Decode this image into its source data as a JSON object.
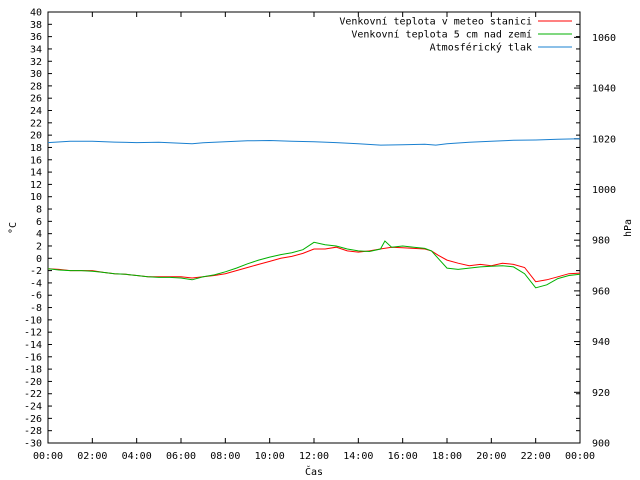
{
  "chart_data": {
    "type": "line",
    "xlabel": "Čas",
    "ylabel": "°C",
    "y2label": "hPa",
    "ylim": [
      -30,
      40
    ],
    "y2lim": [
      900,
      1070
    ],
    "xlim": [
      "00:00",
      "24:00"
    ],
    "x_tick_labels": [
      "00:00",
      "02:00",
      "04:00",
      "06:00",
      "08:00",
      "10:00",
      "12:00",
      "14:00",
      "16:00",
      "18:00",
      "20:00",
      "22:00",
      "00:00"
    ],
    "y_ticks": [
      -30,
      -28,
      -26,
      -24,
      -22,
      -20,
      -18,
      -16,
      -14,
      -12,
      -10,
      -8,
      -6,
      -4,
      -2,
      0,
      2,
      4,
      6,
      8,
      10,
      12,
      14,
      16,
      18,
      20,
      22,
      24,
      26,
      28,
      30,
      32,
      34,
      36,
      38,
      40
    ],
    "y2_ticks": [
      900,
      920,
      940,
      960,
      980,
      1000,
      1020,
      1040,
      1060
    ],
    "grid": false,
    "legend_position": "top-right",
    "series": [
      {
        "name": "Venkovní teplota v meteo stanici",
        "axis": "left",
        "color": "#ff0000",
        "x": [
          0,
          0.5,
          1,
          1.5,
          2,
          2.5,
          3,
          3.5,
          4,
          4.5,
          5,
          5.5,
          6,
          6.5,
          7,
          7.5,
          8,
          8.5,
          9,
          9.5,
          10,
          10.5,
          11,
          11.5,
          12,
          12.5,
          13,
          13.5,
          14,
          14.5,
          15,
          15.5,
          16,
          16.5,
          17,
          17.3,
          17.6,
          18,
          18.5,
          19,
          19.5,
          20,
          20.5,
          21,
          21.5,
          22,
          22.5,
          23,
          23.5,
          24
        ],
        "values": [
          -1.7,
          -1.8,
          -2.0,
          -2.0,
          -2.0,
          -2.3,
          -2.5,
          -2.6,
          -2.8,
          -3.0,
          -3.0,
          -3.0,
          -3.0,
          -3.2,
          -3.0,
          -2.8,
          -2.5,
          -2.0,
          -1.5,
          -1.0,
          -0.5,
          0.0,
          0.3,
          0.8,
          1.5,
          1.5,
          1.8,
          1.2,
          1.0,
          1.2,
          1.5,
          1.8,
          1.7,
          1.6,
          1.5,
          1.2,
          0.5,
          -0.3,
          -0.8,
          -1.2,
          -1.0,
          -1.2,
          -0.8,
          -1.0,
          -1.5,
          -3.8,
          -3.5,
          -3.0,
          -2.5,
          -2.4
        ]
      },
      {
        "name": "Venkovní teplota 5 cm nad zemí",
        "axis": "left",
        "color": "#00b000",
        "x": [
          0,
          0.5,
          1,
          1.5,
          2,
          2.5,
          3,
          3.5,
          4,
          4.5,
          5,
          5.5,
          6,
          6.5,
          7,
          7.5,
          8,
          8.5,
          9,
          9.5,
          10,
          10.5,
          11,
          11.5,
          12,
          12.5,
          13,
          13.5,
          14,
          14.5,
          15,
          15.2,
          15.5,
          16,
          16.5,
          17,
          17.3,
          17.6,
          18,
          18.5,
          19,
          19.5,
          20,
          20.5,
          21,
          21.5,
          22,
          22.5,
          23,
          23.5,
          24
        ],
        "values": [
          -1.7,
          -1.9,
          -2.0,
          -2.0,
          -2.1,
          -2.3,
          -2.5,
          -2.6,
          -2.8,
          -3.0,
          -3.1,
          -3.1,
          -3.2,
          -3.5,
          -3.0,
          -2.7,
          -2.2,
          -1.6,
          -0.9,
          -0.3,
          0.2,
          0.6,
          0.9,
          1.4,
          2.6,
          2.2,
          2.0,
          1.5,
          1.2,
          1.1,
          1.5,
          2.8,
          1.8,
          2.0,
          1.8,
          1.6,
          1.2,
          0.0,
          -1.6,
          -1.8,
          -1.6,
          -1.4,
          -1.3,
          -1.2,
          -1.4,
          -2.5,
          -4.8,
          -4.3,
          -3.3,
          -2.8,
          -2.6
        ]
      },
      {
        "name": "Atmosférický tlak",
        "axis": "right",
        "color": "#1a80d0",
        "x": [
          0,
          1,
          2,
          3,
          4,
          5,
          6,
          6.5,
          7,
          8,
          9,
          10,
          11,
          12,
          13,
          14,
          15,
          16,
          17,
          17.5,
          18,
          19,
          20,
          21,
          22,
          23,
          24
        ],
        "values": [
          1018.5,
          1019.0,
          1019.0,
          1018.7,
          1018.5,
          1018.6,
          1018.2,
          1018.0,
          1018.4,
          1018.8,
          1019.2,
          1019.3,
          1019.0,
          1018.8,
          1018.5,
          1018.0,
          1017.5,
          1017.6,
          1017.8,
          1017.5,
          1018.0,
          1018.6,
          1019.0,
          1019.4,
          1019.5,
          1019.8,
          1020.0
        ]
      }
    ]
  }
}
